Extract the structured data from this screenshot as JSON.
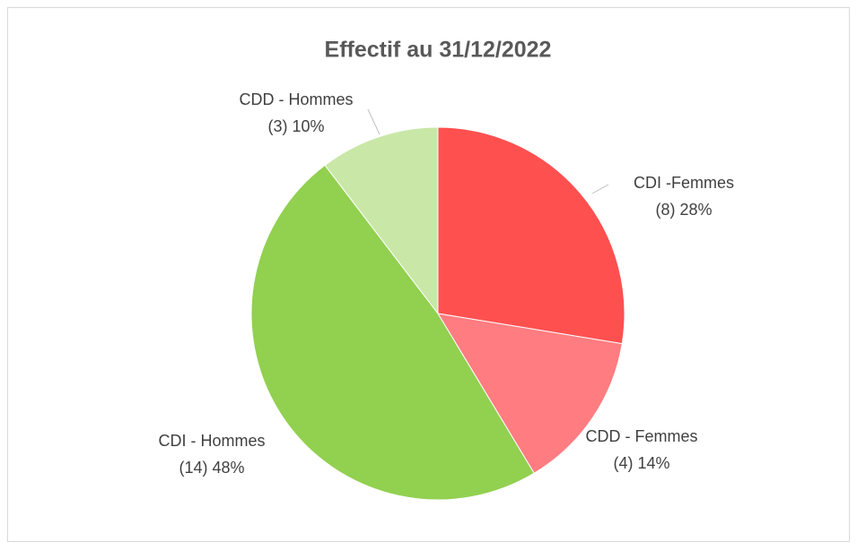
{
  "chart_data": {
    "type": "pie",
    "title": "Effectif au 31/12/2022",
    "categories": [
      "CDI -Femmes",
      "CDD - Femmes",
      "CDI - Hommes",
      "CDD - Hommes"
    ],
    "values": [
      8,
      4,
      14,
      3
    ],
    "value_labels": [
      "(8) 28%",
      "(4) 14%",
      "(14) 48%",
      "(3) 10%"
    ],
    "colors": [
      "#ff5050",
      "#ff7c80",
      "#92d050",
      "#c9e7a7"
    ]
  }
}
